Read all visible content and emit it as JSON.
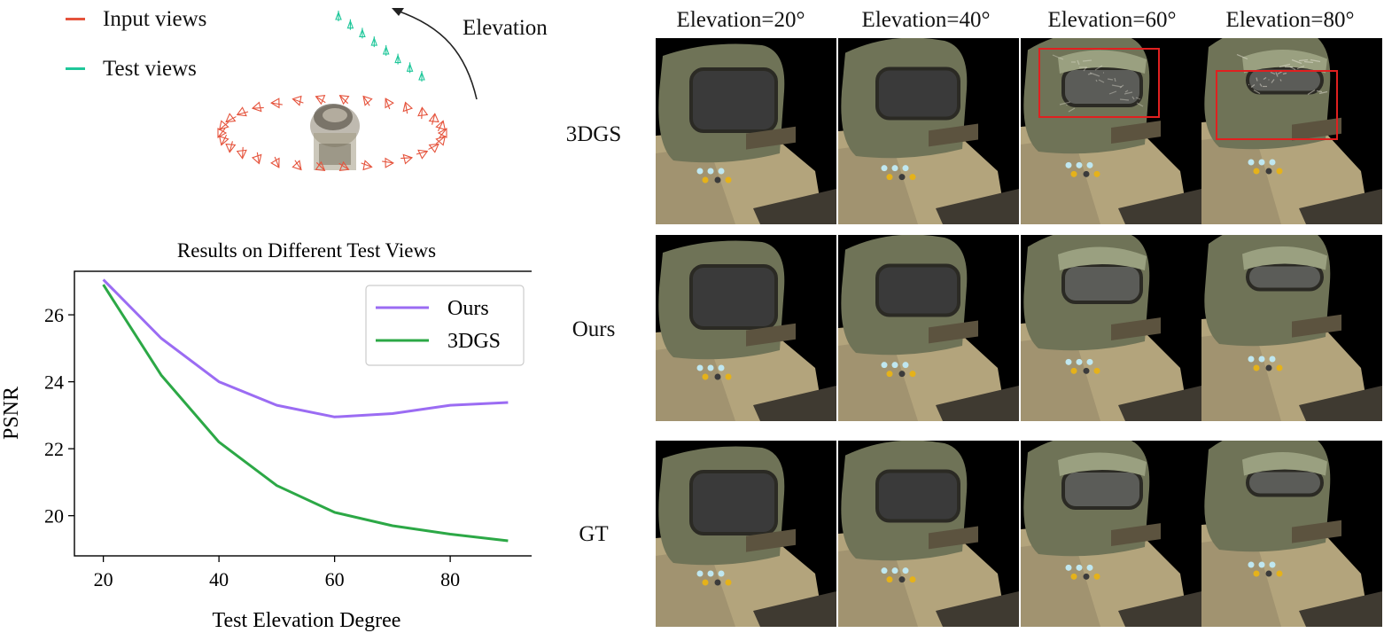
{
  "scene_legend": {
    "input_label": "Input views",
    "input_color": "#e5533c",
    "test_label": "Test views",
    "test_color": "#1fc79a",
    "elevation_label": "Elevation"
  },
  "grid": {
    "columns": [
      "Elevation=20°",
      "Elevation=40°",
      "Elevation=60°",
      "Elevation=80°"
    ],
    "rows": [
      "3DGS",
      "Ours",
      "GT"
    ],
    "highlight_color": "#e02020",
    "highlighted_cells": [
      {
        "row": "3DGS",
        "column": "Elevation=60°"
      },
      {
        "row": "3DGS",
        "column": "Elevation=80°"
      }
    ]
  },
  "chart_data": {
    "type": "line",
    "title": "Results on Different Test Views",
    "xlabel": "Test Elevation Degree",
    "ylabel": "PSNR",
    "x": [
      20,
      30,
      40,
      50,
      60,
      70,
      80,
      90
    ],
    "xlim": [
      15,
      95
    ],
    "ylim": [
      18.8,
      27.3
    ],
    "xticks": [
      20,
      40,
      60,
      80
    ],
    "yticks": [
      20,
      22,
      24,
      26
    ],
    "grid": false,
    "legend_position": "top-right",
    "series": [
      {
        "name": "Ours",
        "color": "#9b6cf3",
        "values": [
          27.05,
          25.3,
          24.0,
          23.3,
          22.95,
          23.05,
          23.3,
          23.38
        ]
      },
      {
        "name": "3DGS",
        "color": "#2ca846",
        "values": [
          26.9,
          24.2,
          22.2,
          20.9,
          20.1,
          19.7,
          19.45,
          19.25
        ]
      }
    ]
  }
}
